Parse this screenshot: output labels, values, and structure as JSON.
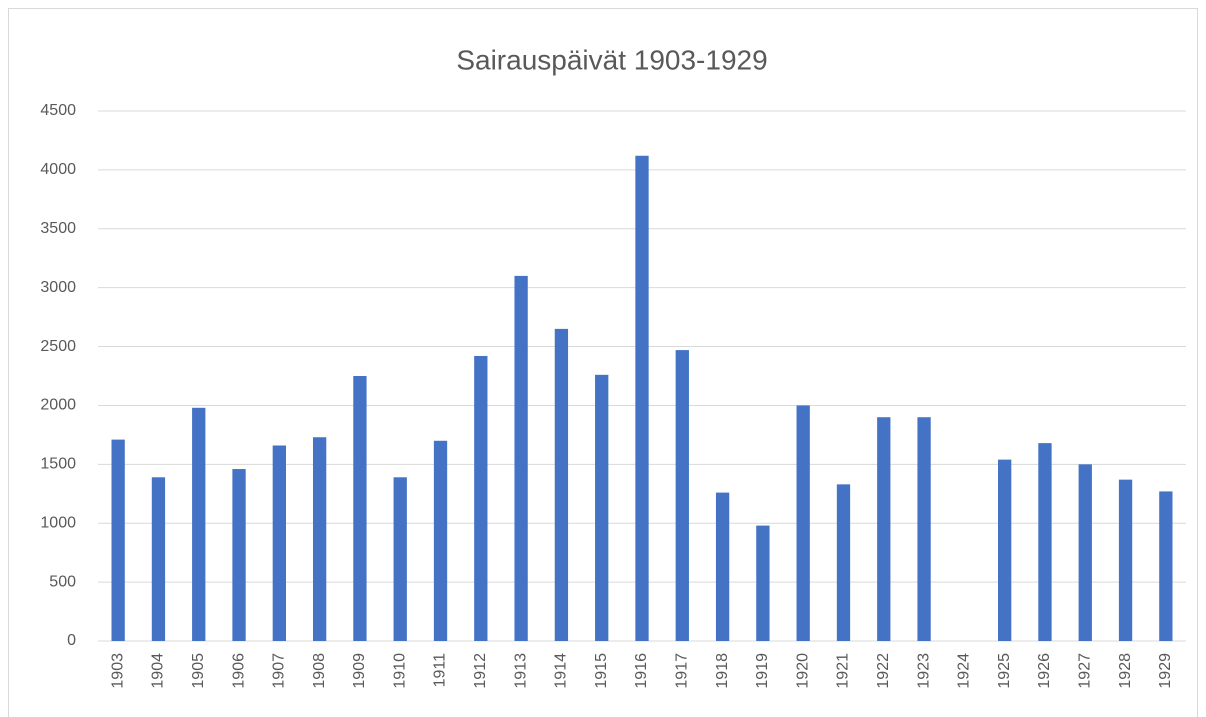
{
  "chart_data": {
    "type": "bar",
    "title": "Sairauspäivät 1903-1929",
    "categories": [
      "1903",
      "1904",
      "1905",
      "1906",
      "1907",
      "1908",
      "1909",
      "1910",
      "1911",
      "1912",
      "1913",
      "1914",
      "1915",
      "1916",
      "1917",
      "1918",
      "1919",
      "1920",
      "1921",
      "1922",
      "1923",
      "1924",
      "1925",
      "1926",
      "1927",
      "1928",
      "1929"
    ],
    "values": [
      1710,
      1390,
      1980,
      1460,
      1660,
      1730,
      2250,
      1390,
      1700,
      2420,
      3100,
      2650,
      2260,
      4120,
      2470,
      1260,
      980,
      2000,
      1330,
      1900,
      1900,
      null,
      1540,
      1680,
      1500,
      1370,
      1270
    ],
    "color": "#4472c4",
    "ylim": [
      0,
      4500
    ],
    "yticks": [
      0,
      500,
      1000,
      1500,
      2000,
      2500,
      3000,
      3500,
      4000,
      4500
    ],
    "grid": true
  }
}
